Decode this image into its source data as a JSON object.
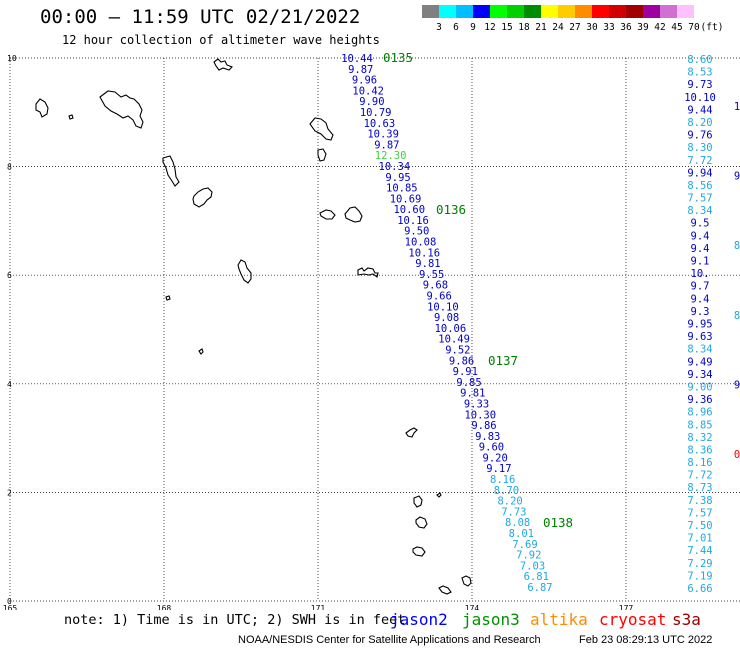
{
  "header": {
    "title": "00:00 – 11:59 UTC 02/21/2022",
    "subtitle": "12 hour collection of altimeter wave heights"
  },
  "legend": {
    "unit": "(ft)",
    "entries": [
      {
        "label": "3",
        "color": "#808080"
      },
      {
        "label": "6",
        "color": "#00ffff"
      },
      {
        "label": "9",
        "color": "#00bfff"
      },
      {
        "label": "12",
        "color": "#0000ff"
      },
      {
        "label": "15",
        "color": "#00ff00"
      },
      {
        "label": "18",
        "color": "#00d000"
      },
      {
        "label": "21",
        "color": "#008c00"
      },
      {
        "label": "24",
        "color": "#ffff00"
      },
      {
        "label": "27",
        "color": "#ffcc00"
      },
      {
        "label": "30",
        "color": "#ff8c00"
      },
      {
        "label": "33",
        "color": "#ff0000"
      },
      {
        "label": "36",
        "color": "#d00000"
      },
      {
        "label": "39",
        "color": "#a00000"
      },
      {
        "label": "42",
        "color": "#a000a0"
      },
      {
        "label": "45",
        "color": "#d070d0"
      },
      {
        "label": "70",
        "color": "#ffc0ff"
      }
    ]
  },
  "axes": {
    "x_ticks": [
      "165",
      "168",
      "171",
      "174",
      "177"
    ],
    "y_ticks": [
      "10",
      "8",
      "6",
      "4",
      "2",
      "0"
    ]
  },
  "map": {
    "lon_range": [
      165,
      179.5
    ],
    "lat_range": [
      0,
      10
    ],
    "grid": true,
    "colors": {
      "dark_blue": "#0000c8",
      "light_blue": "#20a8e0",
      "green_label": "#40d040",
      "time_label": "#008000",
      "red": "#ff0000"
    }
  },
  "tracks": {
    "main": [
      {
        "v": "10.44",
        "c": "dark_blue"
      },
      {
        "v": "9.87",
        "c": "dark_blue"
      },
      {
        "v": "9.96",
        "c": "dark_blue"
      },
      {
        "v": "10.42",
        "c": "dark_blue"
      },
      {
        "v": "9.90",
        "c": "dark_blue"
      },
      {
        "v": "10.79",
        "c": "dark_blue"
      },
      {
        "v": "10.63",
        "c": "dark_blue"
      },
      {
        "v": "10.39",
        "c": "dark_blue"
      },
      {
        "v": "9.87",
        "c": "dark_blue"
      },
      {
        "v": "12.30",
        "c": "green_label"
      },
      {
        "v": "10.34",
        "c": "dark_blue"
      },
      {
        "v": "9.95",
        "c": "dark_blue"
      },
      {
        "v": "10.85",
        "c": "dark_blue"
      },
      {
        "v": "10.69",
        "c": "dark_blue"
      },
      {
        "v": "10.60",
        "c": "dark_blue"
      },
      {
        "v": "10.16",
        "c": "dark_blue"
      },
      {
        "v": "9.50",
        "c": "dark_blue"
      },
      {
        "v": "10.08",
        "c": "dark_blue"
      },
      {
        "v": "10.16",
        "c": "dark_blue"
      },
      {
        "v": "9.81",
        "c": "dark_blue"
      },
      {
        "v": "9.55",
        "c": "dark_blue"
      },
      {
        "v": "9.68",
        "c": "dark_blue"
      },
      {
        "v": "9.66",
        "c": "dark_blue"
      },
      {
        "v": "10.10",
        "c": "dark_blue"
      },
      {
        "v": "9.08",
        "c": "dark_blue"
      },
      {
        "v": "10.06",
        "c": "dark_blue"
      },
      {
        "v": "10.49",
        "c": "dark_blue"
      },
      {
        "v": "9.52",
        "c": "dark_blue"
      },
      {
        "v": "9.86",
        "c": "dark_blue"
      },
      {
        "v": "9.91",
        "c": "dark_blue"
      },
      {
        "v": "9.85",
        "c": "dark_blue"
      },
      {
        "v": "9.81",
        "c": "dark_blue"
      },
      {
        "v": "9.33",
        "c": "dark_blue"
      },
      {
        "v": "10.30",
        "c": "dark_blue"
      },
      {
        "v": "9.86",
        "c": "dark_blue"
      },
      {
        "v": "9.83",
        "c": "dark_blue"
      },
      {
        "v": "9.60",
        "c": "dark_blue"
      },
      {
        "v": "9.20",
        "c": "dark_blue"
      },
      {
        "v": "9.17",
        "c": "dark_blue"
      },
      {
        "v": "8.16",
        "c": "light_blue"
      },
      {
        "v": "8.70",
        "c": "light_blue"
      },
      {
        "v": "8.20",
        "c": "light_blue"
      },
      {
        "v": "7.73",
        "c": "light_blue"
      },
      {
        "v": "8.08",
        "c": "light_blue"
      },
      {
        "v": "8.01",
        "c": "light_blue"
      },
      {
        "v": "7.69",
        "c": "light_blue"
      },
      {
        "v": "7.92",
        "c": "light_blue"
      },
      {
        "v": "7.03",
        "c": "light_blue"
      },
      {
        "v": "6.81",
        "c": "light_blue"
      },
      {
        "v": "6.87",
        "c": "light_blue"
      }
    ],
    "time_labels": [
      "0135",
      "0136",
      "0137",
      "0138"
    ],
    "right_primary": [
      {
        "v": "8.60",
        "c": "light_blue"
      },
      {
        "v": "8.53",
        "c": "light_blue"
      },
      {
        "v": "9.73",
        "c": "dark_blue"
      },
      {
        "v": "10.10",
        "c": "dark_blue"
      },
      {
        "v": "9.44",
        "c": "dark_blue"
      },
      {
        "v": "8.20",
        "c": "light_blue"
      },
      {
        "v": "9.76",
        "c": "dark_blue"
      },
      {
        "v": "8.30",
        "c": "light_blue"
      },
      {
        "v": "7.72",
        "c": "light_blue"
      },
      {
        "v": "9.94",
        "c": "dark_blue"
      },
      {
        "v": "8.56",
        "c": "light_blue"
      },
      {
        "v": "7.57",
        "c": "light_blue"
      },
      {
        "v": "8.34",
        "c": "light_blue"
      },
      {
        "v": "9.5",
        "c": "dark_blue"
      },
      {
        "v": "9.4",
        "c": "dark_blue"
      },
      {
        "v": "9.4",
        "c": "dark_blue"
      },
      {
        "v": "9.1",
        "c": "dark_blue"
      },
      {
        "v": "10.",
        "c": "dark_blue"
      },
      {
        "v": "9.7",
        "c": "dark_blue"
      },
      {
        "v": "9.4",
        "c": "dark_blue"
      },
      {
        "v": "9.3",
        "c": "dark_blue"
      },
      {
        "v": "9.95",
        "c": "dark_blue"
      },
      {
        "v": "9.63",
        "c": "dark_blue"
      },
      {
        "v": "8.34",
        "c": "light_blue"
      },
      {
        "v": "9.49",
        "c": "dark_blue"
      },
      {
        "v": "9.34",
        "c": "dark_blue"
      },
      {
        "v": "9.00",
        "c": "light_blue"
      },
      {
        "v": "9.36",
        "c": "dark_blue"
      },
      {
        "v": "8.96",
        "c": "light_blue"
      },
      {
        "v": "8.85",
        "c": "light_blue"
      },
      {
        "v": "8.32",
        "c": "light_blue"
      },
      {
        "v": "8.36",
        "c": "light_blue"
      },
      {
        "v": "8.16",
        "c": "light_blue"
      },
      {
        "v": "7.72",
        "c": "light_blue"
      },
      {
        "v": "8.73",
        "c": "light_blue"
      },
      {
        "v": "7.38",
        "c": "light_blue"
      },
      {
        "v": "7.57",
        "c": "light_blue"
      },
      {
        "v": "7.50",
        "c": "light_blue"
      },
      {
        "v": "7.01",
        "c": "light_blue"
      },
      {
        "v": "7.44",
        "c": "light_blue"
      },
      {
        "v": "7.29",
        "c": "light_blue"
      },
      {
        "v": "7.19",
        "c": "light_blue"
      },
      {
        "v": "6.66",
        "c": "light_blue"
      }
    ],
    "right_edge": [
      {
        "v": "1",
        "c": "dark_blue"
      },
      {
        "v": "9",
        "c": "dark_blue"
      },
      {
        "v": "8",
        "c": "light_blue"
      },
      {
        "v": "8",
        "c": "light_blue"
      },
      {
        "v": "9",
        "c": "dark_blue"
      },
      {
        "v": "0",
        "c": "red"
      }
    ]
  },
  "footer": {
    "note": "note: 1) Time is in UTC; 2) SWH is in feet",
    "satellites": [
      {
        "name": "jason2",
        "color": "#0000ff"
      },
      {
        "name": "jason3",
        "color": "#009000"
      },
      {
        "name": "altika",
        "color": "#ff8c00"
      },
      {
        "name": "cryosat",
        "color": "#ff0000"
      },
      {
        "name": "s3a",
        "color": "#a00000"
      }
    ],
    "credit": "NOAA/NESDIS Center for Satellite Applications and Research",
    "date": "Feb 23 08:29:13 UTC 2022"
  }
}
